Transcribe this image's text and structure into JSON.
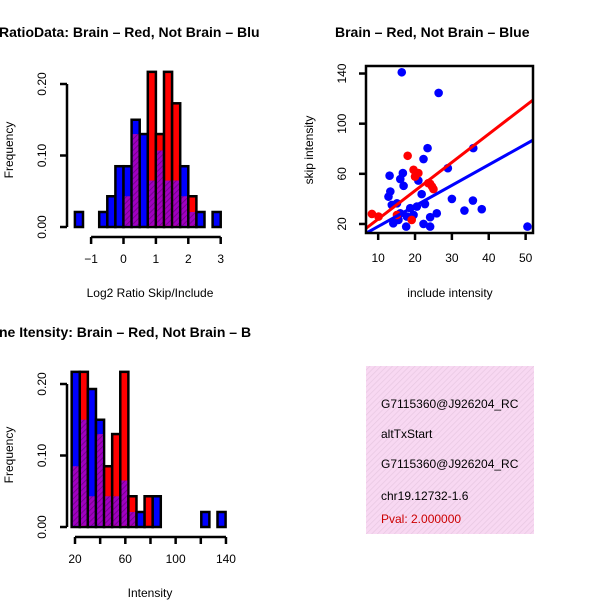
{
  "chart_data": [
    {
      "type": "bar",
      "id": "ratio",
      "title": "RatioData: Brain – Red, Not Brain – Blu",
      "xlabel": "Log2 Ratio Skip/Include",
      "ylabel": "Frequency",
      "xlim": [
        -1.6,
        3.3
      ],
      "ylim": [
        0,
        0.22
      ],
      "xticks": [
        -1,
        0,
        1,
        2,
        3
      ],
      "xtick_labels": [
        "−1",
        "0",
        "1",
        "2",
        "3"
      ],
      "yticks": [
        0,
        0.1,
        0.2
      ],
      "ytick_labels": [
        "0.00",
        "0.10",
        "0.20"
      ],
      "bin_start": -1.5,
      "bin_width": 0.25,
      "series": [
        {
          "name": "Not Brain",
          "color": "#0000ff",
          "values": [
            0.021,
            0,
            0,
            0.021,
            0.043,
            0.085,
            0.085,
            0.15,
            0.13,
            0.065,
            0.107,
            0.065,
            0.065,
            0.085,
            0.021,
            0.021,
            0,
            0.021
          ]
        },
        {
          "name": "Brain",
          "color": "#ff0000",
          "values": [
            0,
            0,
            0,
            0,
            0,
            0,
            0.043,
            0.13,
            0,
            0.217,
            0.13,
            0.217,
            0.173,
            0.043,
            0.043,
            0,
            0,
            0
          ]
        }
      ]
    },
    {
      "type": "scatter",
      "id": "scatter",
      "title": "Brain – Red, Not Brain – Blue",
      "xlabel": "include intensity",
      "ylabel": "skip intensity",
      "xlim": [
        6.7,
        52
      ],
      "ylim": [
        12.8,
        146
      ],
      "xticks": [
        10,
        20,
        30,
        40,
        50
      ],
      "xtick_labels": [
        "10",
        "20",
        "30",
        "40",
        "50"
      ],
      "yticks": [
        20,
        60,
        100,
        140
      ],
      "ytick_labels": [
        "20",
        "60",
        "100",
        "140"
      ],
      "series": [
        {
          "name": "Not Brain",
          "color": "#0000ff",
          "x": [
            16.4,
            26.4,
            23.4,
            22.3,
            35.8,
            28.9,
            13.1,
            16,
            16.7,
            20.9,
            16.9,
            13.3,
            12.8,
            30,
            21.8,
            35.7,
            38.1,
            33.4,
            25.9,
            24.1,
            22.3,
            24.1,
            17.6,
            50.5,
            14.1,
            15.1,
            13.7,
            18.7,
            20.5,
            22.7,
            16,
            17.8,
            19.6,
            15.5
          ],
          "y": [
            141,
            124.5,
            80.5,
            71.8,
            80.5,
            64.5,
            58.5,
            55.8,
            60.6,
            54.6,
            50.4,
            45.9,
            41.8,
            40,
            43.8,
            38.7,
            31.8,
            30.7,
            28.5,
            25.4,
            20,
            17.9,
            17.9,
            17.9,
            20.5,
            36.5,
            35.2,
            32.6,
            33.9,
            35.9,
            28.5,
            25.9,
            27.2,
            23.2
          ],
          "fit": {
            "slope": 1.64,
            "intercept": 1.6
          }
        },
        {
          "name": "Brain",
          "color": "#ff0000",
          "x": [
            8.3,
            10.1,
            18,
            19.6,
            20.9,
            20,
            23.6,
            24.6,
            25,
            24.1,
            19.1,
            15.1
          ],
          "y": [
            28,
            25.9,
            74.4,
            63.2,
            60.6,
            57.8,
            52.5,
            49.9,
            47.8,
            52,
            23.2,
            27.2
          ],
          "fit": {
            "slope": 2.26,
            "intercept": 1.36
          }
        }
      ]
    },
    {
      "type": "bar",
      "id": "intensity",
      "title": "ne Itensity: Brain – Red, Not Brain – B",
      "xlabel": "Intensity",
      "ylabel": "Frequency",
      "xlim": [
        14,
        147
      ],
      "ylim": [
        0,
        0.22
      ],
      "xticks": [
        20,
        40,
        60,
        80,
        100,
        120,
        140
      ],
      "xtick_labels": [
        "20",
        "",
        "60",
        "",
        "100",
        "",
        "140"
      ],
      "yticks": [
        0,
        0.1,
        0.2
      ],
      "ytick_labels": [
        "0.00",
        "0.10",
        "0.20"
      ],
      "bin_start": 17.35,
      "bin_width": 6.44,
      "series": [
        {
          "name": "Not Brain",
          "color": "#0000ff",
          "values": [
            0.217,
            0.15,
            0.193,
            0.15,
            0.043,
            0.043,
            0.065,
            0.021,
            0.021,
            0,
            0.043,
            0,
            0,
            0,
            0,
            0,
            0.021,
            0,
            0.021
          ]
        },
        {
          "name": "Brain",
          "color": "#ff0000",
          "values": [
            0.085,
            0.217,
            0.043,
            0.13,
            0.085,
            0.13,
            0.217,
            0.043,
            0,
            0.043,
            0,
            0,
            0,
            0,
            0,
            0,
            0,
            0,
            0
          ]
        }
      ]
    }
  ],
  "colors": {
    "overlap": "#9a00b8",
    "info_bg": "#f8d8f2",
    "pval": "#cc0000"
  },
  "info": {
    "line1": "G7115360@J926204_RC",
    "line2": "altTxStart",
    "line3": "G7115360@J926204_RC",
    "line4": "chr19.12732-1.6",
    "pval": "Pval: 2.000000"
  }
}
